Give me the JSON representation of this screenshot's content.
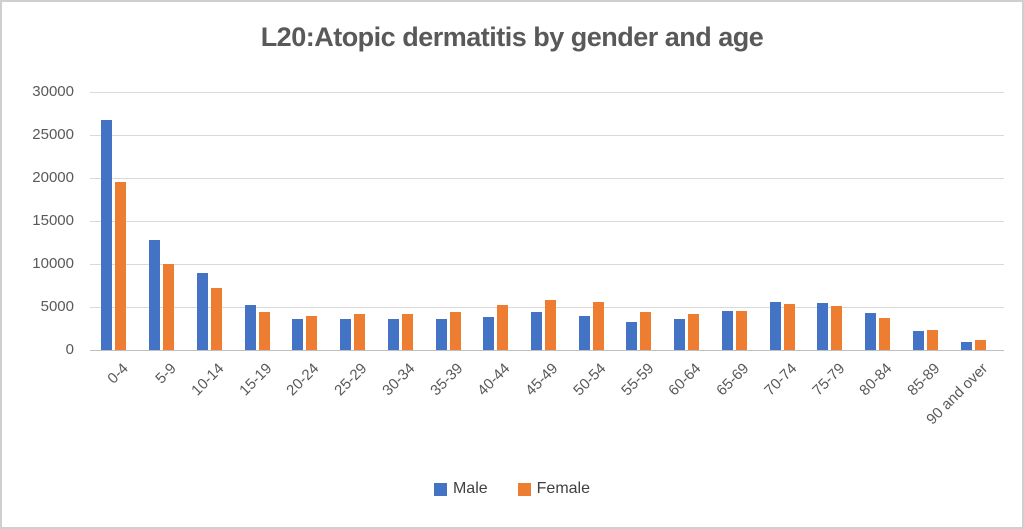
{
  "chart_data": {
    "type": "bar",
    "title": "L20:Atopic dermatitis by gender and age",
    "categories": [
      "0-4",
      "5-9",
      "10-14",
      "15-19",
      "20-24",
      "25-29",
      "30-34",
      "35-39",
      "40-44",
      "45-49",
      "50-54",
      "55-59",
      "60-64",
      "65-69",
      "70-74",
      "75-79",
      "80-84",
      "85-89",
      "90 and over"
    ],
    "series": [
      {
        "name": "Male",
        "color": "#4472C4",
        "values": [
          26800,
          12800,
          8900,
          5250,
          3650,
          3550,
          3600,
          3650,
          3800,
          4450,
          3900,
          3300,
          3600,
          4500,
          5600,
          5450,
          4300,
          2250,
          950
        ]
      },
      {
        "name": "Female",
        "color": "#ED7D31",
        "values": [
          19500,
          10000,
          7200,
          4400,
          3950,
          4150,
          4150,
          4450,
          5200,
          5800,
          5550,
          4400,
          4200,
          4500,
          5350,
          5150,
          3700,
          2300,
          1150
        ]
      }
    ],
    "xlabel": "",
    "ylabel": "",
    "ylim": [
      0,
      30000
    ],
    "ytick_interval": 5000,
    "ytick_labels": [
      "0",
      "5000",
      "10000",
      "15000",
      "20000",
      "25000",
      "30000"
    ],
    "grid": true,
    "legend_position": "bottom",
    "colors": {
      "title_text": "#595959",
      "axis_text": "#595959",
      "gridline": "#d9d9d9",
      "axis_line": "#bfbfbf"
    }
  }
}
